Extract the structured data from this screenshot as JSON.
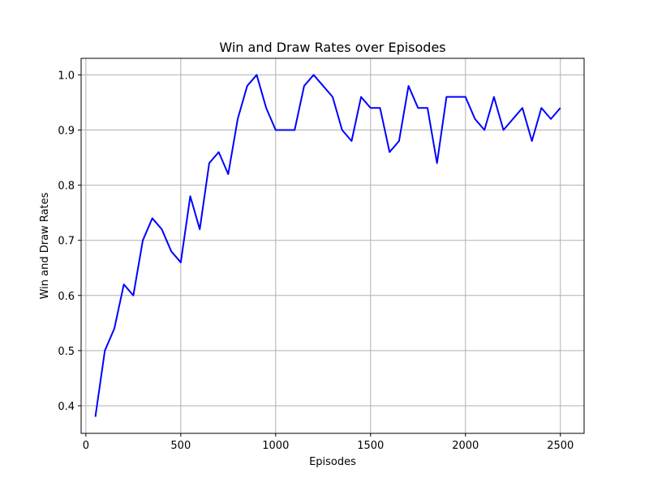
{
  "chart_data": {
    "type": "line",
    "title": "Win and Draw Rates over Episodes",
    "xlabel": "Episodes",
    "ylabel": "Win and Draw Rates",
    "xlim": [
      -25,
      2625
    ],
    "ylim": [
      0.35,
      1.03
    ],
    "xticks": [
      0,
      500,
      1000,
      1500,
      2000,
      2500
    ],
    "yticks": [
      0.4,
      0.5,
      0.6,
      0.7,
      0.8,
      0.9,
      1.0
    ],
    "xtick_labels": [
      "0",
      "500",
      "1000",
      "1500",
      "2000",
      "2500"
    ],
    "ytick_labels": [
      "0.4",
      "0.5",
      "0.6",
      "0.7",
      "0.8",
      "0.9",
      "1.0"
    ],
    "grid": true,
    "colors": {
      "line": "#0000ff",
      "grid": "#b0b0b0"
    },
    "series": [
      {
        "x": [
          50,
          100,
          150,
          200,
          250,
          300,
          350,
          400,
          450,
          500,
          550,
          600,
          650,
          700,
          750,
          800,
          850,
          900,
          950,
          1000,
          1050,
          1100,
          1150,
          1200,
          1250,
          1300,
          1350,
          1400,
          1450,
          1500,
          1550,
          1600,
          1650,
          1700,
          1750,
          1800,
          1850,
          1900,
          1950,
          2000,
          2050,
          2100,
          2150,
          2200,
          2250,
          2300,
          2350,
          2400,
          2450,
          2500
        ],
        "values": [
          0.38,
          0.5,
          0.54,
          0.62,
          0.6,
          0.7,
          0.74,
          0.72,
          0.68,
          0.66,
          0.78,
          0.72,
          0.84,
          0.86,
          0.82,
          0.92,
          0.98,
          1.0,
          0.94,
          0.9,
          0.9,
          0.9,
          0.98,
          1.0,
          0.98,
          0.96,
          0.9,
          0.88,
          0.96,
          0.94,
          0.94,
          0.86,
          0.88,
          0.98,
          0.94,
          0.94,
          0.84,
          0.96,
          0.96,
          0.96,
          0.92,
          0.9,
          0.96,
          0.9,
          0.92,
          0.94,
          0.88,
          0.94,
          0.92,
          0.94
        ]
      }
    ]
  }
}
